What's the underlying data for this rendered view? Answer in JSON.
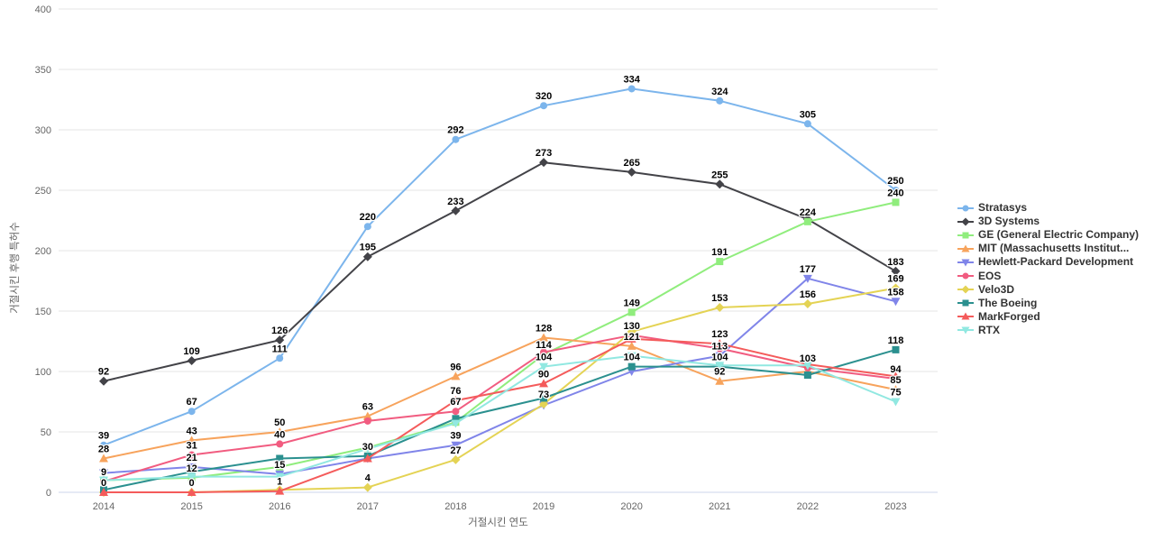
{
  "chart_data": {
    "type": "line",
    "title": "",
    "xlabel": "거절시킨 연도",
    "ylabel": "거절시킨 후행 특허수",
    "x_categories": [
      "2014",
      "2015",
      "2016",
      "2017",
      "2018",
      "2019",
      "2020",
      "2021",
      "2022",
      "2023"
    ],
    "ylim": [
      0,
      400
    ],
    "y_ticks": [
      0,
      50,
      100,
      150,
      200,
      250,
      300,
      350,
      400
    ],
    "grid": "horizontal-only",
    "legend_position": "right",
    "axis_line_color": "#ccd6eb",
    "grid_color": "#e6e6e6",
    "series": [
      {
        "name": "Stratasys",
        "color": "#7cb5ec",
        "marker": "circle",
        "values": [
          39,
          67,
          111,
          220,
          292,
          320,
          334,
          324,
          305,
          250
        ],
        "labels": [
          39,
          67,
          111,
          220,
          292,
          320,
          334,
          324,
          305,
          250
        ]
      },
      {
        "name": "3D Systems",
        "color": "#434348",
        "marker": "diamond",
        "values": [
          92,
          109,
          126,
          195,
          233,
          273,
          265,
          255,
          226,
          183
        ],
        "labels": [
          92,
          109,
          126,
          195,
          233,
          273,
          265,
          255,
          null,
          183
        ]
      },
      {
        "name": "GE (General Electric Company)",
        "color": "#90ed7d",
        "marker": "square",
        "values": [
          10,
          12,
          21,
          37,
          58,
          114,
          149,
          191,
          224,
          240
        ],
        "labels": [
          null,
          12,
          null,
          null,
          null,
          114,
          149,
          191,
          224,
          240
        ]
      },
      {
        "name": "MIT (Massachusetts Institut...",
        "color": "#f7a35c",
        "marker": "triangle",
        "values": [
          28,
          43,
          50,
          63,
          96,
          128,
          121,
          92,
          100,
          85
        ],
        "labels": [
          28,
          43,
          50,
          63,
          96,
          128,
          121,
          92,
          null,
          85
        ]
      },
      {
        "name": "Hewlett-Packard Development",
        "color": "#8085e9",
        "marker": "triangle-down",
        "values": [
          16,
          21,
          15,
          28,
          39,
          72,
          100,
          113,
          177,
          158
        ],
        "labels": [
          null,
          21,
          15,
          null,
          39,
          null,
          null,
          113,
          177,
          158
        ]
      },
      {
        "name": "EOS",
        "color": "#f15c80",
        "marker": "circle",
        "values": [
          9,
          31,
          40,
          59,
          67,
          116,
          130,
          119,
          103,
          94
        ],
        "labels": [
          9,
          31,
          40,
          null,
          67,
          null,
          130,
          null,
          103,
          94
        ]
      },
      {
        "name": "Velo3D",
        "color": "#e4d354",
        "marker": "diamond",
        "values": [
          0,
          0,
          2,
          4,
          27,
          73,
          133,
          153,
          156,
          169
        ],
        "labels": [
          null,
          null,
          null,
          4,
          27,
          73,
          null,
          153,
          156,
          169
        ]
      },
      {
        "name": "The Boeing",
        "color": "#2b908f",
        "marker": "square",
        "values": [
          2,
          17,
          28,
          30,
          61,
          78,
          104,
          104,
          97,
          118
        ],
        "labels": [
          null,
          null,
          null,
          30,
          null,
          null,
          104,
          104,
          null,
          118
        ]
      },
      {
        "name": "MarkForged",
        "color": "#f45b5b",
        "marker": "triangle",
        "values": [
          0,
          0,
          1,
          28,
          76,
          90,
          127,
          123,
          106,
          96
        ],
        "labels": [
          0,
          0,
          1,
          null,
          76,
          90,
          null,
          123,
          null,
          null
        ]
      },
      {
        "name": "RTX",
        "color": "#91e8e1",
        "marker": "triangle-down",
        "values": [
          10,
          13,
          13,
          36,
          57,
          104,
          113,
          105,
          105,
          75
        ],
        "labels": [
          null,
          null,
          null,
          null,
          null,
          104,
          null,
          null,
          null,
          75
        ]
      }
    ]
  }
}
